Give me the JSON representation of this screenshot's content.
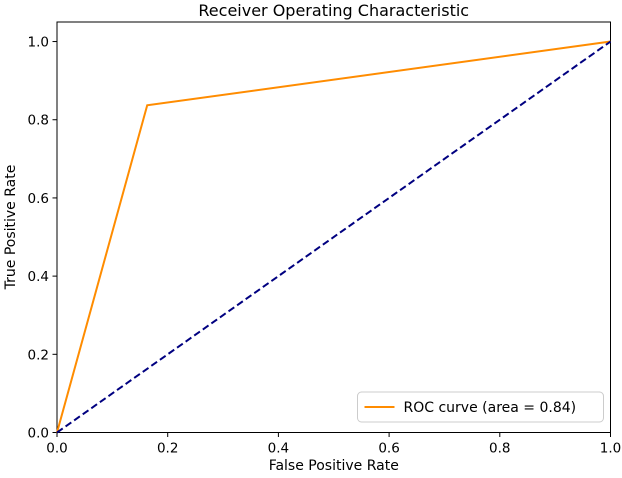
{
  "figure": {
    "background": "#ffffff",
    "axis_color": "#000000",
    "text_color": "#000000"
  },
  "chart_data": {
    "type": "line",
    "title": "Receiver Operating Characteristic",
    "xlabel": "False Positive Rate",
    "ylabel": "True Positive Rate",
    "xlim": [
      0.0,
      1.0
    ],
    "ylim": [
      0.0,
      1.05
    ],
    "xticks": [
      0.0,
      0.2,
      0.4,
      0.6,
      0.8,
      1.0
    ],
    "xtick_labels": [
      "0.0",
      "0.2",
      "0.4",
      "0.6",
      "0.8",
      "1.0"
    ],
    "yticks": [
      0.0,
      0.2,
      0.4,
      0.6,
      0.8,
      1.0
    ],
    "ytick_labels": [
      "0.0",
      "0.2",
      "0.4",
      "0.6",
      "0.8",
      "1.0"
    ],
    "grid": false,
    "legend": {
      "position": "lower right",
      "label": "ROC curve (area = 0.84)",
      "border_color": "#cccccc",
      "background": "#ffffff"
    },
    "auc": 0.84,
    "series": [
      {
        "id": "roc-curve",
        "name": "ROC curve (area = 0.84)",
        "color": "#ff8c00",
        "style": "solid",
        "width": 2,
        "in_legend": true,
        "points": [
          [
            0.0,
            0.0
          ],
          [
            0.163,
            0.837
          ],
          [
            1.0,
            1.0
          ]
        ]
      },
      {
        "id": "chance-diagonal",
        "name": "chance diagonal",
        "color": "#000080",
        "style": "dashed",
        "width": 2,
        "in_legend": false,
        "points": [
          [
            0.0,
            0.0
          ],
          [
            1.0,
            1.0
          ]
        ]
      }
    ]
  }
}
